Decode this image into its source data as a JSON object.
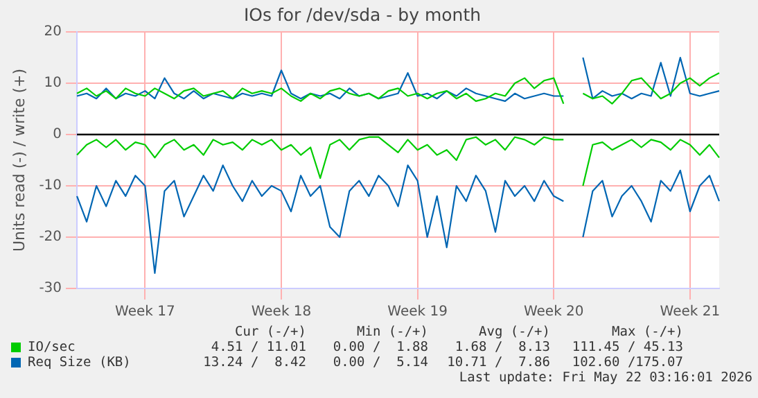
{
  "chart_data": {
    "type": "line",
    "title": "IOs for /dev/sda - by month",
    "ylabel": "Units read (-) / write (+)",
    "categories": [
      null,
      null,
      null,
      null,
      null,
      null,
      null,
      "Week 17",
      null,
      null,
      null,
      null,
      null,
      null,
      null,
      null,
      null,
      null,
      null,
      null,
      null,
      "Week 18",
      null,
      null,
      null,
      null,
      null,
      null,
      null,
      null,
      null,
      null,
      null,
      null,
      null,
      "Week 19",
      null,
      null,
      null,
      null,
      null,
      null,
      null,
      null,
      null,
      null,
      null,
      null,
      null,
      "Week 20",
      null,
      null,
      null,
      null,
      null,
      null,
      null,
      null,
      null,
      null,
      null,
      null,
      null,
      "Week 21",
      null,
      null,
      null
    ],
    "series": [
      {
        "name": "IO/sec",
        "color": "#00cc00",
        "values": [
          8,
          9,
          7.5,
          8.5,
          7,
          9,
          8,
          7.5,
          9,
          8,
          7,
          8.5,
          9,
          7.5,
          8,
          8.5,
          7,
          9,
          8,
          8.5,
          8,
          9,
          7.5,
          6.5,
          8,
          7,
          8.5,
          9,
          8,
          7.5,
          8,
          7,
          8.5,
          9,
          7.5,
          8,
          7,
          8,
          8.5,
          7,
          8,
          6.5,
          7,
          8,
          7.5,
          10,
          11,
          9,
          10.5,
          11,
          6,
          null,
          8,
          7,
          7.5,
          6,
          8,
          10.5,
          11,
          9,
          7,
          8,
          10,
          11,
          9.5,
          11,
          12
        ]
      },
      {
        "color": "#00cc00",
        "values": [
          -4,
          -2,
          -1,
          -2.5,
          -1,
          -3,
          -1.5,
          -2,
          -4.5,
          -2,
          -1,
          -3,
          -2,
          -4,
          -1,
          -2,
          -1.5,
          -3,
          -1,
          -2,
          -1,
          -3,
          -2,
          -4,
          -2.5,
          -8.5,
          -2,
          -1,
          -3,
          -1,
          -0.5,
          -0.5,
          -2,
          -3.5,
          -1,
          -3,
          -2,
          -4,
          -3,
          -5,
          -1,
          -0.5,
          -2,
          -1,
          -3,
          -0.5,
          -1,
          -2,
          -0.5,
          -1,
          -1,
          null,
          -10,
          -2,
          -1.5,
          -3,
          -2,
          -1,
          -2.5,
          -1,
          -1.5,
          -3,
          -1,
          -2,
          -4,
          -2,
          -4.5
        ]
      },
      {
        "name": "Req Size (KB)",
        "color": "#0066b3",
        "values": [
          7.5,
          8,
          7,
          9,
          7,
          8,
          7.5,
          8.5,
          7,
          11,
          8,
          7,
          8.5,
          7,
          8,
          7.5,
          7,
          8,
          7.5,
          8,
          7.5,
          12.5,
          8,
          7,
          8,
          7.5,
          8,
          7,
          9,
          7.5,
          8,
          7,
          7.5,
          8,
          12,
          7.5,
          8,
          7,
          8.5,
          7.5,
          9,
          8,
          7.5,
          7,
          6.5,
          8,
          7,
          7.5,
          8,
          7.5,
          7.5,
          null,
          15,
          7,
          8.5,
          7.5,
          8,
          7,
          8,
          7.5,
          14,
          7.5,
          15,
          8,
          7.5,
          8,
          8.5
        ]
      },
      {
        "color": "#0066b3",
        "values": [
          -12,
          -17,
          -10,
          -14,
          -9,
          -12,
          -8,
          -10,
          -27,
          -11,
          -9,
          -16,
          -12,
          -8,
          -11,
          -6,
          -10,
          -13,
          -9,
          -12,
          -10,
          -11,
          -15,
          -8,
          -12,
          -10,
          -18,
          -20,
          -11,
          -9,
          -12,
          -8,
          -10,
          -14,
          -6,
          -9,
          -20,
          -12,
          -22,
          -10,
          -13,
          -8,
          -11,
          -19,
          -9,
          -12,
          -10,
          -13,
          -9,
          -12,
          -13,
          null,
          -20,
          -11,
          -9,
          -16,
          -12,
          -10,
          -13,
          -17,
          -9,
          -11,
          -7,
          -15,
          -10,
          -8,
          -13
        ]
      }
    ],
    "ylim": [
      -30,
      20
    ],
    "yticks": [
      -30,
      -20,
      -10,
      0,
      10,
      20
    ],
    "ref_lines": [
      {
        "axis": "y",
        "value": 0,
        "color": "#000000"
      }
    ],
    "grid": true,
    "legend": "bottom",
    "marker": "none",
    "line_style": "solid",
    "annotations": [
      "Cur (-/+)",
      "Min (-/+)",
      "Avg (-/+)",
      "Max (-/+)",
      "4.51 / 11.01",
      "0.00 /  1.88",
      "1.68 /  8.13",
      "111.45 / 45.13",
      "13.24 /  8.42",
      "0.00 /  5.14",
      "10.71 /  7.86",
      "102.60 /175.07",
      "Last update: Fri May 22 03:16:01 2026"
    ]
  }
}
